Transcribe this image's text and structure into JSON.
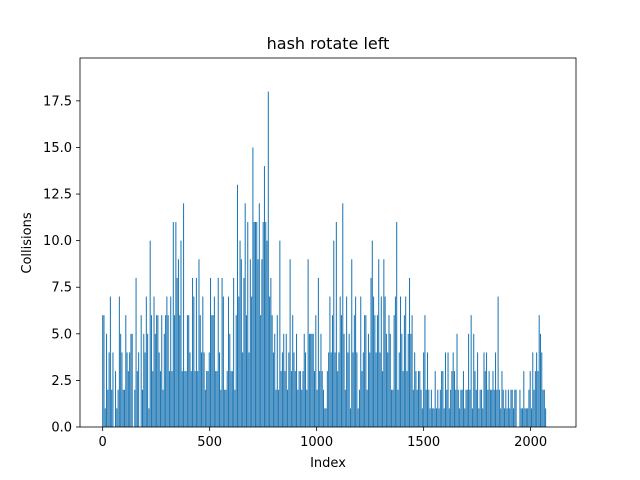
{
  "chart_data": {
    "type": "bar",
    "title": "hash rotate left",
    "xlabel": "Index",
    "ylabel": "Collisions",
    "xlim": [
      -106,
      2212
    ],
    "ylim": [
      0,
      19.8
    ],
    "xticks": [
      0,
      500,
      1000,
      1500,
      2000
    ],
    "yticks": [
      0.0,
      2.5,
      5.0,
      7.5,
      10.0,
      12.5,
      15.0,
      17.5
    ],
    "ytick_labels": [
      "0.0",
      "2.5",
      "5.0",
      "7.5",
      "10.0",
      "12.5",
      "15.0",
      "17.5"
    ],
    "grid": false,
    "color": "#1f77b4",
    "x_start": 0,
    "x_step": 6,
    "values": [
      6,
      6,
      1,
      5,
      2,
      4,
      7,
      2,
      4,
      0,
      3,
      1,
      2,
      7,
      5,
      4,
      2,
      2,
      6,
      4,
      3,
      4,
      5,
      5,
      0,
      2,
      8,
      3,
      4,
      0,
      6,
      2,
      5,
      4,
      7,
      5,
      1,
      10,
      6,
      3,
      7,
      5,
      6,
      6,
      4,
      3,
      6,
      2,
      5,
      6,
      7,
      6,
      3,
      7,
      3,
      11,
      6,
      11,
      8,
      9,
      6,
      10,
      3,
      12,
      3,
      3,
      6,
      6,
      4,
      3,
      8,
      7,
      3,
      8,
      3,
      9,
      6,
      4,
      7,
      4,
      2,
      3,
      3,
      4,
      8,
      6,
      6,
      7,
      3,
      3,
      8,
      4,
      2,
      8,
      7,
      2,
      2,
      3,
      7,
      5,
      3,
      3,
      8,
      2,
      6,
      13,
      7,
      10,
      9,
      4,
      8,
      12,
      6,
      11,
      4,
      9,
      7,
      15,
      11,
      11,
      11,
      9,
      12,
      6,
      9,
      11,
      14,
      11,
      10,
      18,
      7,
      8,
      6,
      4,
      5,
      2,
      6,
      2,
      10,
      3,
      4,
      5,
      3,
      5,
      2,
      4,
      9,
      3,
      6,
      4,
      3,
      5,
      2,
      3,
      3,
      2,
      3,
      5,
      4,
      2,
      9,
      5,
      5,
      5,
      5,
      3,
      6,
      2,
      8,
      3,
      5,
      3,
      2,
      1,
      1,
      3,
      4,
      7,
      4,
      6,
      10,
      4,
      11,
      3,
      4,
      7,
      6,
      12,
      5,
      2,
      7,
      4,
      5,
      1,
      9,
      4,
      6,
      7,
      4,
      1,
      2,
      7,
      3,
      4,
      6,
      6,
      2,
      5,
      4,
      8,
      10,
      7,
      6,
      4,
      6,
      9,
      4,
      7,
      3,
      9,
      7,
      5,
      4,
      6,
      5,
      2,
      2,
      6,
      7,
      11,
      2,
      4,
      7,
      5,
      3,
      6,
      7,
      3,
      5,
      8,
      5,
      6,
      2,
      4,
      3,
      2,
      3,
      3,
      2,
      1,
      4,
      6,
      2,
      4,
      2,
      1,
      2,
      1,
      1,
      3,
      1,
      2,
      1,
      2,
      3,
      3,
      1,
      4,
      2,
      4,
      1,
      2,
      3,
      4,
      3,
      2,
      5,
      2,
      1,
      2,
      2,
      3,
      1,
      2,
      2,
      5,
      2,
      6,
      1,
      5,
      3,
      2,
      4,
      1,
      2,
      2,
      1,
      4,
      3,
      4,
      2,
      3,
      2,
      2,
      3,
      2,
      4,
      2,
      7,
      2,
      1,
      3,
      2,
      1,
      2,
      1,
      2,
      1,
      2,
      2,
      1,
      2,
      2,
      0,
      0,
      2,
      1,
      1,
      3,
      1,
      1,
      1,
      2,
      3,
      1,
      4,
      2,
      3,
      4,
      3,
      6,
      5,
      4,
      2,
      2,
      1
    ]
  }
}
